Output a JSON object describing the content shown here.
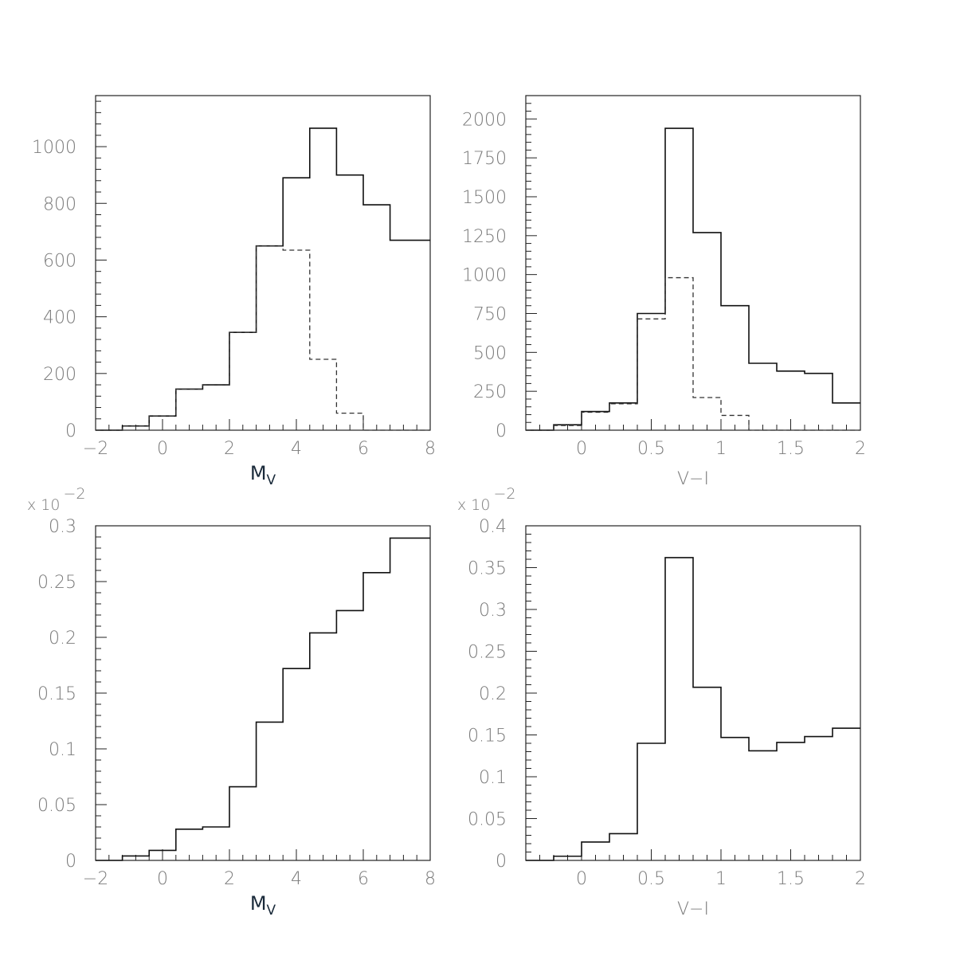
{
  "chart_data": [
    {
      "type": "histogram",
      "panel": "top-left",
      "xlabel": "M",
      "xlabel_sub": "V",
      "xlim": [
        -2,
        8
      ],
      "ylim": [
        0,
        1180
      ],
      "xticks": [
        -2,
        0,
        2,
        4,
        6,
        8
      ],
      "xtick_labels": [
        "−2",
        "0",
        "2",
        "4",
        "6",
        "8"
      ],
      "yticks": [
        0,
        200,
        400,
        600,
        800,
        1000
      ],
      "ytick_labels": [
        "0",
        "200",
        "400",
        "600",
        "800",
        "1000"
      ],
      "scale_note": "",
      "edges": [
        -2,
        -1.2,
        -0.4,
        0.4,
        1.2,
        2,
        2.8,
        3.6,
        4.4,
        5.2,
        6,
        6.8,
        7.6,
        8
      ],
      "series": [
        {
          "style": "solid",
          "values": [
            0,
            15,
            50,
            145,
            160,
            345,
            650,
            890,
            1065,
            900,
            795,
            670,
            670
          ]
        },
        {
          "style": "dashed",
          "values": [
            0,
            15,
            50,
            145,
            160,
            345,
            650,
            635,
            250,
            60,
            0,
            0,
            0
          ]
        }
      ]
    },
    {
      "type": "histogram",
      "panel": "top-right",
      "xlabel": "V−I",
      "xlabel_sub": "",
      "xlim": [
        -0.4,
        2
      ],
      "ylim": [
        0,
        2150
      ],
      "xticks": [
        0,
        0.5,
        1,
        1.5,
        2
      ],
      "xtick_labels": [
        "0",
        "0.5",
        "1",
        "1.5",
        "2"
      ],
      "yticks": [
        0,
        250,
        500,
        750,
        1000,
        1250,
        1500,
        1750,
        2000
      ],
      "ytick_labels": [
        "0",
        "250",
        "500",
        "750",
        "1000",
        "1250",
        "1500",
        "1750",
        "2000"
      ],
      "scale_note": "",
      "edges": [
        -0.4,
        -0.2,
        0,
        0.2,
        0.4,
        0.6,
        0.8,
        1.0,
        1.2,
        1.4,
        1.6,
        1.8,
        2.0
      ],
      "series": [
        {
          "style": "solid",
          "values": [
            0,
            35,
            120,
            175,
            750,
            1940,
            1270,
            800,
            430,
            380,
            365,
            175
          ]
        },
        {
          "style": "dashed",
          "values": [
            0,
            30,
            115,
            170,
            715,
            980,
            210,
            95,
            0,
            0,
            0,
            0
          ]
        }
      ]
    },
    {
      "type": "histogram",
      "panel": "bottom-left",
      "xlabel": "M",
      "xlabel_sub": "V",
      "xlim": [
        -2,
        8
      ],
      "ylim": [
        0,
        0.3
      ],
      "xticks": [
        -2,
        0,
        2,
        4,
        6,
        8
      ],
      "xtick_labels": [
        "−2",
        "0",
        "2",
        "4",
        "6",
        "8"
      ],
      "yticks": [
        0,
        0.05,
        0.1,
        0.15,
        0.2,
        0.25,
        0.3
      ],
      "ytick_labels": [
        "0",
        "0.05",
        "0.1",
        "0.15",
        "0.2",
        "0.25",
        "0.3"
      ],
      "scale_note": "x 10",
      "scale_exp": "−2",
      "edges": [
        -2,
        -1.2,
        -0.4,
        0.4,
        1.2,
        2,
        2.8,
        3.6,
        4.4,
        5.2,
        6,
        6.8,
        7.6,
        8
      ],
      "series": [
        {
          "style": "solid",
          "values": [
            0,
            0.004,
            0.009,
            0.028,
            0.03,
            0.066,
            0.124,
            0.172,
            0.204,
            0.224,
            0.258,
            0.289,
            0.289
          ]
        }
      ]
    },
    {
      "type": "histogram",
      "panel": "bottom-right",
      "xlabel": "V−I",
      "xlabel_sub": "",
      "xlim": [
        -0.4,
        2
      ],
      "ylim": [
        0,
        0.4
      ],
      "xticks": [
        0,
        0.5,
        1,
        1.5,
        2
      ],
      "xtick_labels": [
        "0",
        "0.5",
        "1",
        "1.5",
        "2"
      ],
      "yticks": [
        0,
        0.05,
        0.1,
        0.15,
        0.2,
        0.25,
        0.3,
        0.35,
        0.4
      ],
      "ytick_labels": [
        "0",
        "0.05",
        "0.1",
        "0.15",
        "0.2",
        "0.25",
        "0.3",
        "0.35",
        "0.4"
      ],
      "scale_note": "x 10",
      "scale_exp": "−2",
      "edges": [
        -0.4,
        -0.2,
        0,
        0.2,
        0.4,
        0.6,
        0.8,
        1.0,
        1.2,
        1.4,
        1.6,
        1.8,
        2.0
      ],
      "series": [
        {
          "style": "solid",
          "values": [
            0,
            0.005,
            0.022,
            0.032,
            0.14,
            0.362,
            0.207,
            0.147,
            0.131,
            0.141,
            0.148,
            0.158
          ]
        }
      ]
    }
  ]
}
